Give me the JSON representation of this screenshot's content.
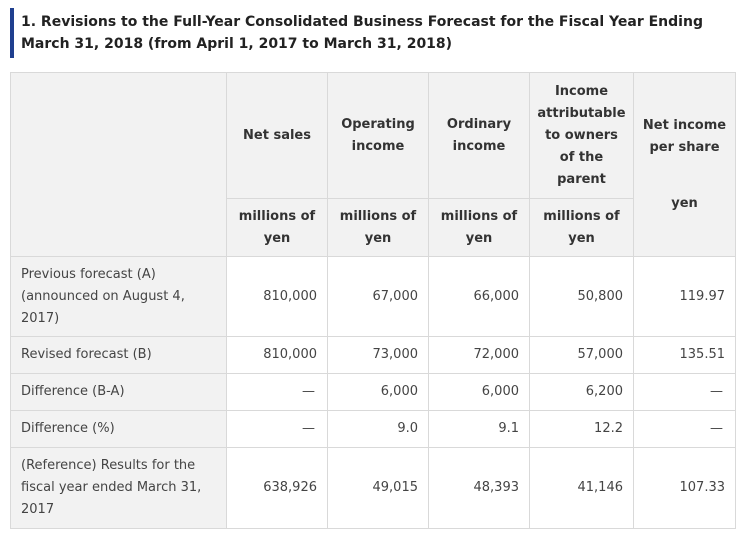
{
  "section_title": "1. Revisions to the Full-Year Consolidated Business Forecast for the Fiscal Year Ending March 31, 2018 (from April 1, 2017 to March 31, 2018)",
  "table": {
    "corner": "",
    "columns": [
      {
        "header": "Net sales",
        "unit": "millions of yen"
      },
      {
        "header": "Operating income",
        "unit": "millions of yen"
      },
      {
        "header": "Ordinary income",
        "unit": "millions of yen"
      },
      {
        "header": "Income attributable to owners of the parent",
        "unit": "millions of yen"
      },
      {
        "header": "Net income per share",
        "unit": "yen"
      }
    ],
    "rows": [
      {
        "label": "Previous forecast (A) (announced on August 4, 2017)",
        "values": [
          "810,000",
          "67,000",
          "66,000",
          "50,800",
          "119.97"
        ]
      },
      {
        "label": "Revised forecast (B)",
        "values": [
          "810,000",
          "73,000",
          "72,000",
          "57,000",
          "135.51"
        ]
      },
      {
        "label": "Difference (B-A)",
        "values": [
          "—",
          "6,000",
          "6,000",
          "6,200",
          "—"
        ]
      },
      {
        "label": "Difference (%)",
        "values": [
          "—",
          "9.0",
          "9.1",
          "12.2",
          "—"
        ]
      },
      {
        "label": "(Reference) Results for the fiscal year ended March 31, 2017",
        "values": [
          "638,926",
          "49,015",
          "48,393",
          "41,146",
          "107.33"
        ]
      }
    ]
  }
}
